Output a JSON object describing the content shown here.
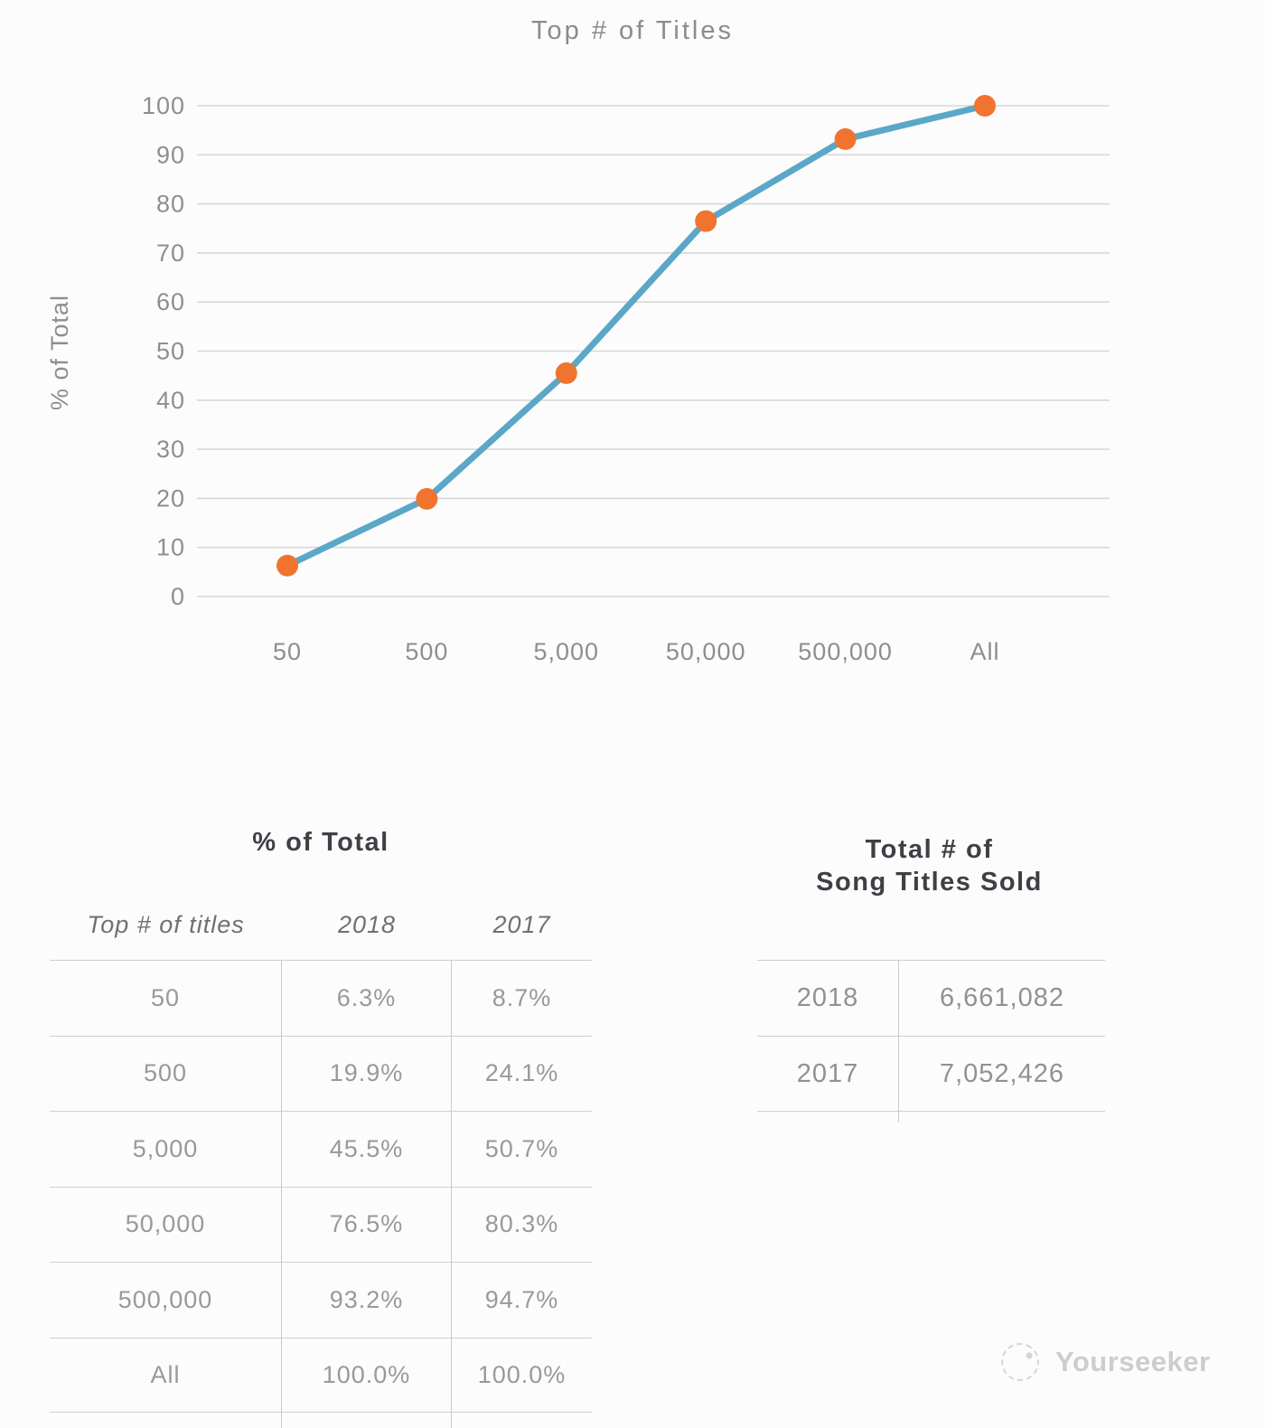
{
  "chart_data": {
    "type": "line",
    "title": "Top # of Titles",
    "xlabel": "",
    "ylabel": "% of Total",
    "categories": [
      "50",
      "500",
      "5,000",
      "50,000",
      "500,000",
      "All"
    ],
    "series": [
      {
        "name": "2018",
        "values": [
          6.3,
          19.9,
          45.5,
          76.5,
          93.2,
          100.0
        ]
      }
    ],
    "ylim": [
      0,
      100
    ],
    "ytick_step": 10,
    "grid": true,
    "legend": "none",
    "line_color": "#5aa7c7",
    "marker_color": "#f0742e",
    "gridline_color": "#d8d8d8"
  },
  "pct_table": {
    "title": "% of Total",
    "columns": [
      "Top # of titles",
      "2018",
      "2017"
    ],
    "rows": [
      [
        "50",
        "6.3%",
        "8.7%"
      ],
      [
        "500",
        "19.9%",
        "24.1%"
      ],
      [
        "5,000",
        "45.5%",
        "50.7%"
      ],
      [
        "50,000",
        "76.5%",
        "80.3%"
      ],
      [
        "500,000",
        "93.2%",
        "94.7%"
      ],
      [
        "All",
        "100.0%",
        "100.0%"
      ]
    ]
  },
  "totals_table": {
    "title_line1": "Total # of",
    "title_line2": "Song Titles Sold",
    "rows": [
      [
        "2018",
        "6,661,082"
      ],
      [
        "2017",
        "7,052,426"
      ]
    ]
  },
  "watermark": {
    "text": "Yourseeker"
  }
}
